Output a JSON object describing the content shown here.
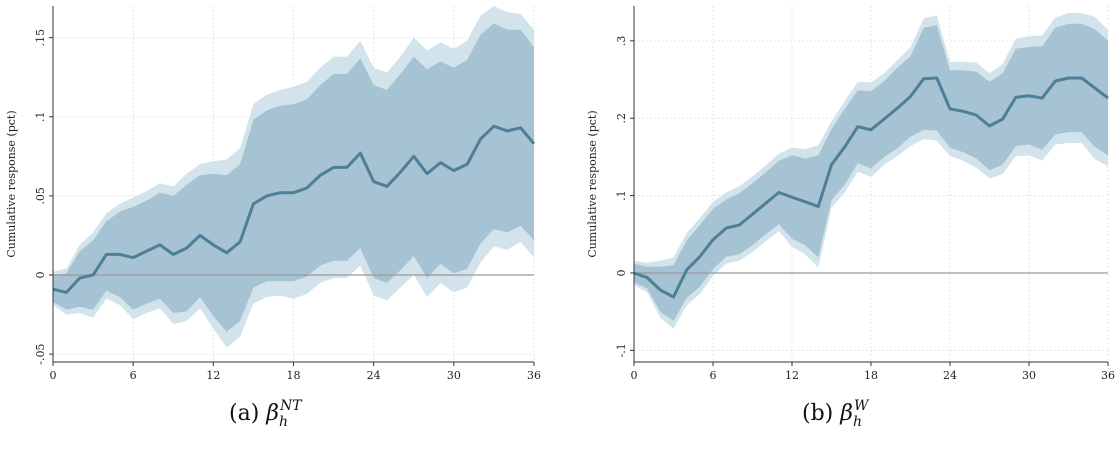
{
  "chart_data": [
    {
      "type": "line",
      "caption_prefix": "(a)",
      "caption_symbol": "β",
      "caption_sub": "h",
      "caption_sup": "NT",
      "ylabel": "Cumulative response (pct)",
      "xlabel": "",
      "xlim": [
        0,
        36
      ],
      "ylim": [
        -0.055,
        0.17
      ],
      "xticks": [
        0,
        6,
        12,
        18,
        24,
        30,
        36
      ],
      "yticks": [
        -0.05,
        0,
        0.05,
        0.1,
        0.15
      ],
      "ytick_labels": [
        "-.05",
        "0",
        ".05",
        ".1",
        ".15"
      ],
      "grid": true,
      "colors": {
        "line": "#4d7f96",
        "band_inner": "#a6c3d3",
        "band_outer": "#d3e3ec",
        "zero_line": "#999999"
      },
      "x": [
        0,
        1,
        2,
        3,
        4,
        5,
        6,
        7,
        8,
        9,
        10,
        11,
        12,
        13,
        14,
        15,
        16,
        17,
        18,
        19,
        20,
        21,
        22,
        23,
        24,
        25,
        26,
        27,
        28,
        29,
        30,
        31,
        32,
        33,
        34,
        35,
        36
      ],
      "series": [
        {
          "values": [
            -0.009,
            -0.011,
            -0.002,
            0.0,
            0.013,
            0.013,
            0.011,
            0.015,
            0.019,
            0.013,
            0.017,
            0.025,
            0.019,
            0.014,
            0.021,
            0.045,
            0.05,
            0.052,
            0.052,
            0.055,
            0.063,
            0.068,
            0.068,
            0.077,
            0.059,
            0.056,
            0.065,
            0.075,
            0.064,
            0.071,
            0.066,
            0.07,
            0.086,
            0.094,
            0.091,
            0.093,
            0.083
          ]
        },
        {
          "role": "ci_inner_upper",
          "values": [
            0.0,
            0.001,
            0.015,
            0.022,
            0.034,
            0.04,
            0.043,
            0.047,
            0.052,
            0.05,
            0.057,
            0.063,
            0.064,
            0.063,
            0.07,
            0.098,
            0.104,
            0.107,
            0.108,
            0.111,
            0.12,
            0.127,
            0.127,
            0.137,
            0.12,
            0.117,
            0.127,
            0.138,
            0.13,
            0.135,
            0.131,
            0.136,
            0.152,
            0.159,
            0.155,
            0.155,
            0.144
          ]
        },
        {
          "role": "ci_inner_lower",
          "values": [
            -0.017,
            -0.022,
            -0.02,
            -0.022,
            -0.01,
            -0.014,
            -0.022,
            -0.018,
            -0.015,
            -0.024,
            -0.023,
            -0.014,
            -0.026,
            -0.036,
            -0.029,
            -0.008,
            -0.004,
            -0.004,
            -0.004,
            -0.001,
            0.006,
            0.009,
            0.009,
            0.017,
            -0.002,
            -0.005,
            0.003,
            0.012,
            -0.002,
            0.007,
            0.001,
            0.004,
            0.02,
            0.029,
            0.027,
            0.031,
            0.022
          ]
        },
        {
          "role": "ci_outer_upper",
          "values": [
            0.002,
            0.004,
            0.019,
            0.027,
            0.039,
            0.045,
            0.049,
            0.053,
            0.058,
            0.056,
            0.064,
            0.07,
            0.072,
            0.073,
            0.08,
            0.108,
            0.114,
            0.117,
            0.119,
            0.122,
            0.131,
            0.138,
            0.138,
            0.148,
            0.131,
            0.128,
            0.138,
            0.15,
            0.142,
            0.147,
            0.143,
            0.148,
            0.164,
            0.17,
            0.166,
            0.165,
            0.155
          ]
        },
        {
          "role": "ci_outer_lower",
          "values": [
            -0.019,
            -0.025,
            -0.024,
            -0.027,
            -0.015,
            -0.019,
            -0.028,
            -0.024,
            -0.021,
            -0.031,
            -0.029,
            -0.021,
            -0.034,
            -0.046,
            -0.039,
            -0.018,
            -0.014,
            -0.013,
            -0.015,
            -0.012,
            -0.005,
            -0.002,
            -0.002,
            0.006,
            -0.013,
            -0.016,
            -0.008,
            0.0,
            -0.014,
            -0.005,
            -0.011,
            -0.008,
            0.008,
            0.018,
            0.016,
            0.021,
            0.011
          ]
        }
      ]
    },
    {
      "type": "line",
      "caption_prefix": "(b)",
      "caption_symbol": "β",
      "caption_sub": "h",
      "caption_sup": "W",
      "ylabel": "Cumulative response (pct)",
      "xlabel": "",
      "xlim": [
        0,
        36
      ],
      "ylim": [
        -0.115,
        0.345
      ],
      "xticks": [
        0,
        6,
        12,
        18,
        24,
        30,
        36
      ],
      "yticks": [
        -0.1,
        0,
        0.1,
        0.2,
        0.3
      ],
      "ytick_labels": [
        "-.1",
        "0",
        ".1",
        ".2",
        ".3"
      ],
      "grid": true,
      "colors": {
        "line": "#4d7f96",
        "band_inner": "#a6c3d3",
        "band_outer": "#d3e3ec",
        "zero_line": "#999999"
      },
      "x": [
        0,
        1,
        2,
        3,
        4,
        5,
        6,
        7,
        8,
        9,
        10,
        11,
        12,
        13,
        14,
        15,
        16,
        17,
        18,
        19,
        20,
        21,
        22,
        23,
        24,
        25,
        26,
        27,
        28,
        29,
        30,
        31,
        32,
        33,
        34,
        35,
        36
      ],
      "series": [
        {
          "values": [
            0.0,
            -0.006,
            -0.022,
            -0.031,
            0.004,
            0.021,
            0.043,
            0.058,
            0.062,
            0.076,
            0.09,
            0.104,
            0.098,
            0.092,
            0.086,
            0.14,
            0.163,
            0.189,
            0.185,
            0.199,
            0.213,
            0.228,
            0.251,
            0.252,
            0.212,
            0.209,
            0.204,
            0.19,
            0.199,
            0.227,
            0.229,
            0.226,
            0.248,
            0.252,
            0.252,
            0.239,
            0.226
          ]
        },
        {
          "role": "ci_inner_upper",
          "values": [
            0.012,
            0.008,
            0.008,
            0.01,
            0.042,
            0.062,
            0.083,
            0.095,
            0.103,
            0.116,
            0.13,
            0.145,
            0.152,
            0.148,
            0.152,
            0.186,
            0.212,
            0.236,
            0.235,
            0.248,
            0.265,
            0.28,
            0.317,
            0.32,
            0.262,
            0.262,
            0.26,
            0.247,
            0.258,
            0.29,
            0.292,
            0.293,
            0.317,
            0.322,
            0.322,
            0.315,
            0.3
          ]
        },
        {
          "role": "ci_inner_lower",
          "values": [
            -0.012,
            -0.02,
            -0.05,
            -0.062,
            -0.032,
            -0.018,
            0.005,
            0.021,
            0.024,
            0.036,
            0.05,
            0.063,
            0.044,
            0.036,
            0.02,
            0.094,
            0.114,
            0.142,
            0.135,
            0.15,
            0.161,
            0.176,
            0.185,
            0.184,
            0.162,
            0.156,
            0.148,
            0.133,
            0.14,
            0.164,
            0.166,
            0.159,
            0.179,
            0.182,
            0.182,
            0.163,
            0.152
          ]
        },
        {
          "role": "ci_outer_upper",
          "values": [
            0.016,
            0.013,
            0.016,
            0.02,
            0.052,
            0.071,
            0.092,
            0.104,
            0.112,
            0.125,
            0.139,
            0.154,
            0.162,
            0.16,
            0.165,
            0.196,
            0.222,
            0.247,
            0.246,
            0.258,
            0.275,
            0.292,
            0.329,
            0.333,
            0.273,
            0.273,
            0.272,
            0.258,
            0.27,
            0.303,
            0.306,
            0.307,
            0.33,
            0.336,
            0.336,
            0.331,
            0.314
          ]
        },
        {
          "role": "ci_outer_lower",
          "values": [
            -0.016,
            -0.025,
            -0.058,
            -0.072,
            -0.042,
            -0.027,
            -0.004,
            0.012,
            0.016,
            0.027,
            0.041,
            0.054,
            0.034,
            0.024,
            0.007,
            0.084,
            0.104,
            0.131,
            0.124,
            0.14,
            0.151,
            0.164,
            0.173,
            0.171,
            0.151,
            0.145,
            0.136,
            0.122,
            0.128,
            0.151,
            0.152,
            0.145,
            0.166,
            0.168,
            0.168,
            0.147,
            0.138
          ]
        }
      ]
    }
  ]
}
